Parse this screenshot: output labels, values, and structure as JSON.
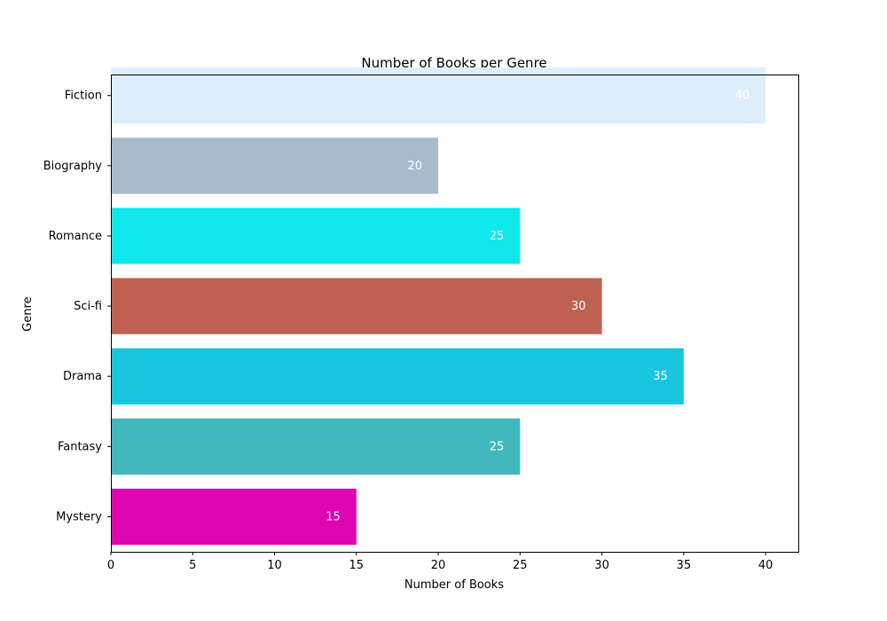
{
  "chart_data": {
    "type": "bar",
    "orientation": "horizontal",
    "title": "Number of Books per Genre",
    "xlabel": "Number of Books",
    "ylabel": "Genre",
    "categories": [
      "Mystery",
      "Fantasy",
      "Drama",
      "Sci-fi",
      "Romance",
      "Biography",
      "Fiction"
    ],
    "values": [
      15,
      25,
      35,
      30,
      25,
      20,
      40
    ],
    "value_labels": [
      "15",
      "25",
      "35",
      "30",
      "25",
      "20",
      "40"
    ],
    "colors": [
      "#dd06b2",
      "#41b8bd",
      "#18c6e0",
      "#bf6150",
      "#11e8ec",
      "#a8bacb",
      "#ddeefd"
    ],
    "xlim": [
      0,
      42
    ],
    "xticks": [
      0,
      5,
      10,
      15,
      20,
      25,
      30,
      35,
      40
    ],
    "xtick_labels": [
      "0",
      "5",
      "10",
      "15",
      "20",
      "25",
      "30",
      "35",
      "40"
    ],
    "grid": false,
    "legend": "none"
  }
}
